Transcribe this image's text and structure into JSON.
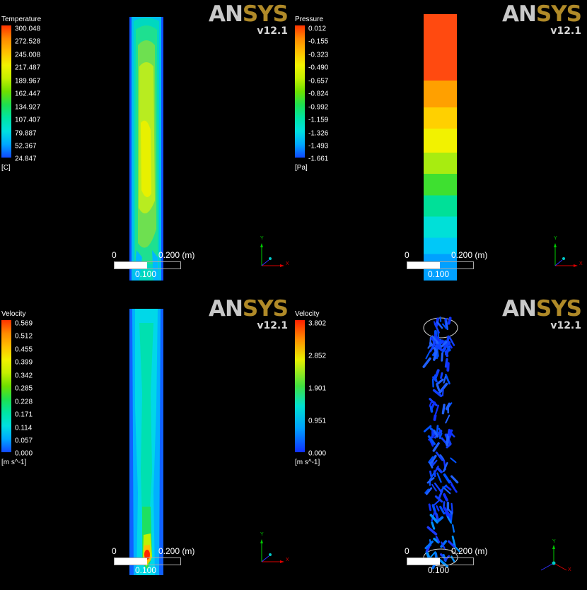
{
  "logo": {
    "an": "AN",
    "sys": "SYS",
    "version": "v12.1"
  },
  "axes": {
    "y": "Y",
    "x": "X"
  },
  "scale_bar": {
    "start": "0",
    "end": "0.200  (m)",
    "mid": "0.100"
  },
  "panels": [
    {
      "title": "Temperature",
      "unit": "[C]",
      "ticks": [
        "300.048",
        "272.528",
        "245.008",
        "217.487",
        "189.967",
        "162.447",
        "134.927",
        "107.407",
        "79.887",
        "52.367",
        "24.847"
      ]
    },
    {
      "title": "Pressure",
      "unit": "[Pa]",
      "ticks": [
        "0.012",
        "-0.155",
        "-0.323",
        "-0.490",
        "-0.657",
        "-0.824",
        "-0.992",
        "-1.159",
        "-1.326",
        "-1.493",
        "-1.661"
      ]
    },
    {
      "title": "Velocity",
      "unit": "[m s^-1]",
      "ticks": [
        "0.569",
        "0.512",
        "0.455",
        "0.399",
        "0.342",
        "0.285",
        "0.228",
        "0.171",
        "0.114",
        "0.057",
        "0.000"
      ]
    },
    {
      "title": "Velocity",
      "unit": "[m s^-1]",
      "ticks": [
        "3.802",
        "2.852",
        "1.901",
        "0.951",
        "0.000"
      ]
    }
  ],
  "colors": {
    "band_colors": [
      "#ff3300",
      "#ff8a00",
      "#ffbf00",
      "#f2f200",
      "#c4f000",
      "#6ee000",
      "#1ee050",
      "#00e4a4",
      "#00e0e0",
      "#00a8ff",
      "#1048ff"
    ]
  }
}
